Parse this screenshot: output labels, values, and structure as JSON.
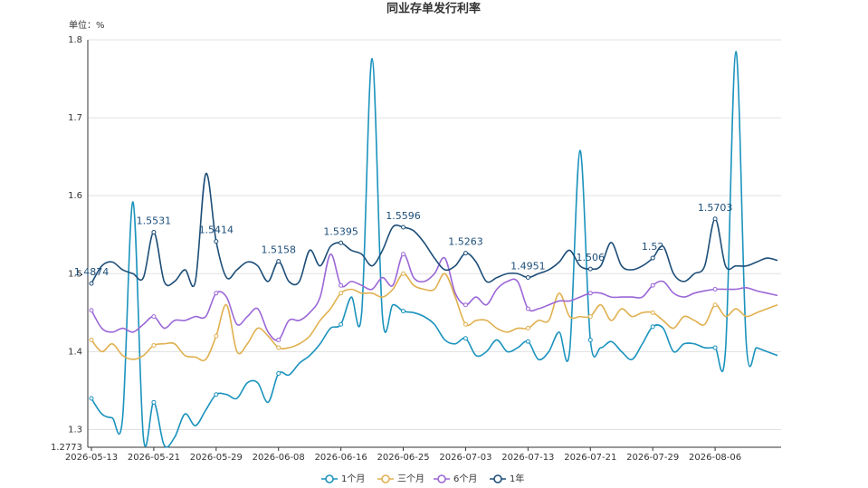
{
  "chart_data": {
    "type": "line",
    "title": "同业存单发行利率",
    "unit_label": "单位：%",
    "categories": [
      "2026-05-13",
      null,
      null,
      null,
      null,
      null,
      "2026-05-21",
      null,
      null,
      null,
      null,
      null,
      "2026-05-29",
      null,
      null,
      null,
      null,
      null,
      "2026-06-08",
      null,
      null,
      null,
      null,
      null,
      "2026-06-16",
      null,
      null,
      null,
      null,
      null,
      "2026-06-25",
      null,
      null,
      null,
      null,
      null,
      "2026-07-03",
      null,
      null,
      null,
      null,
      null,
      "2026-07-13",
      null,
      null,
      null,
      null,
      null,
      "2026-07-21",
      null,
      null,
      null,
      null,
      null,
      "2026-07-29",
      null,
      null,
      null,
      null,
      null,
      "2026-08-06",
      null,
      null,
      null,
      null,
      null,
      null
    ],
    "ylim": [
      1.2773,
      1.8
    ],
    "yticks": [
      1.2773,
      1.3,
      1.4,
      1.5,
      1.6,
      1.7,
      1.8
    ],
    "grid": true,
    "smooth": true,
    "legend": "bottom",
    "series": [
      {
        "name": "1个月",
        "color": "#1b93bd",
        "values": [
          1.34,
          1.32,
          1.315,
          1.315,
          1.592,
          1.29,
          1.335,
          1.28,
          1.29,
          1.32,
          1.305,
          1.325,
          1.345,
          1.345,
          1.34,
          1.36,
          1.36,
          1.335,
          1.372,
          1.37,
          1.385,
          1.395,
          1.41,
          1.43,
          1.435,
          1.47,
          1.45,
          1.776,
          1.445,
          1.46,
          1.452,
          1.45,
          1.445,
          1.435,
          1.415,
          1.41,
          1.417,
          1.395,
          1.4,
          1.415,
          1.4,
          1.405,
          1.413,
          1.39,
          1.4,
          1.425,
          1.4,
          1.658,
          1.415,
          1.405,
          1.413,
          1.4,
          1.39,
          1.41,
          1.432,
          1.43,
          1.4,
          1.41,
          1.41,
          1.405,
          1.405,
          1.402,
          1.785,
          1.41,
          1.405,
          1.4,
          1.395
        ]
      },
      {
        "name": "三个月",
        "color": "#e0b04f",
        "values": [
          1.415,
          1.4,
          1.41,
          1.395,
          1.39,
          1.395,
          1.408,
          1.41,
          1.41,
          1.395,
          1.393,
          1.39,
          1.42,
          1.46,
          1.4,
          1.41,
          1.43,
          1.42,
          1.405,
          1.405,
          1.41,
          1.42,
          1.44,
          1.455,
          1.475,
          1.48,
          1.475,
          1.475,
          1.47,
          1.48,
          1.5,
          1.485,
          1.48,
          1.48,
          1.5,
          1.47,
          1.435,
          1.44,
          1.44,
          1.43,
          1.425,
          1.43,
          1.43,
          1.44,
          1.44,
          1.475,
          1.445,
          1.445,
          1.445,
          1.46,
          1.44,
          1.455,
          1.445,
          1.45,
          1.45,
          1.44,
          1.43,
          1.445,
          1.44,
          1.435,
          1.46,
          1.445,
          1.455,
          1.445,
          1.45,
          1.455,
          1.46
        ]
      },
      {
        "name": "6个月",
        "color": "#9a67d6",
        "values": [
          1.453,
          1.43,
          1.425,
          1.43,
          1.425,
          1.435,
          1.445,
          1.43,
          1.44,
          1.44,
          1.445,
          1.445,
          1.475,
          1.47,
          1.435,
          1.445,
          1.455,
          1.425,
          1.415,
          1.44,
          1.44,
          1.45,
          1.47,
          1.525,
          1.485,
          1.49,
          1.485,
          1.48,
          1.495,
          1.485,
          1.525,
          1.495,
          1.49,
          1.5,
          1.52,
          1.475,
          1.46,
          1.47,
          1.46,
          1.48,
          1.49,
          1.49,
          1.455,
          1.455,
          1.46,
          1.465,
          1.465,
          1.47,
          1.475,
          1.475,
          1.47,
          1.47,
          1.47,
          1.47,
          1.485,
          1.49,
          1.475,
          1.47,
          1.475,
          1.478,
          1.48,
          1.48,
          1.48,
          1.482,
          1.478,
          1.475,
          1.472
        ]
      },
      {
        "name": "1年",
        "color": "#1d4e78",
        "values": [
          1.4874,
          1.51,
          1.515,
          1.505,
          1.5,
          1.495,
          1.5531,
          1.49,
          1.49,
          1.505,
          1.49,
          1.628,
          1.5414,
          1.495,
          1.505,
          1.515,
          1.51,
          1.49,
          1.5158,
          1.49,
          1.49,
          1.53,
          1.51,
          1.535,
          1.5395,
          1.53,
          1.525,
          1.51,
          1.53,
          1.56,
          1.5596,
          1.555,
          1.54,
          1.52,
          1.505,
          1.51,
          1.5263,
          1.515,
          1.49,
          1.495,
          1.5,
          1.5,
          1.4951,
          1.5,
          1.505,
          1.515,
          1.53,
          1.51,
          1.506,
          1.51,
          1.54,
          1.51,
          1.505,
          1.51,
          1.52,
          1.535,
          1.5,
          1.49,
          1.5,
          1.51,
          1.5703,
          1.51,
          1.51,
          1.51,
          1.515,
          1.52,
          1.517
        ],
        "value_labels": [
          1.4874,
          null,
          null,
          null,
          null,
          null,
          1.5531,
          null,
          null,
          null,
          null,
          null,
          1.5414,
          null,
          null,
          null,
          null,
          null,
          1.5158,
          null,
          null,
          null,
          null,
          null,
          1.5395,
          null,
          null,
          null,
          null,
          null,
          1.5596,
          null,
          null,
          null,
          null,
          null,
          1.5263,
          null,
          null,
          null,
          null,
          null,
          1.4951,
          null,
          null,
          null,
          null,
          null,
          1.506,
          null,
          null,
          null,
          null,
          null,
          1.52,
          null,
          null,
          null,
          null,
          null,
          1.5703,
          null,
          null,
          null,
          null,
          null,
          null
        ]
      }
    ]
  }
}
